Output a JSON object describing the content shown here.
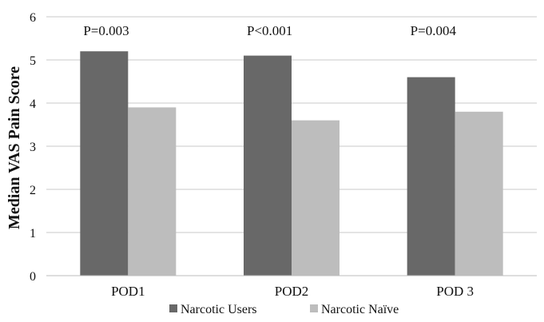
{
  "chart_data": {
    "type": "bar",
    "categories": [
      "POD1",
      "POD2",
      "POD 3"
    ],
    "series": [
      {
        "name": "Narcotic Users",
        "values": [
          5.2,
          5.1,
          4.6
        ],
        "color": "#686868"
      },
      {
        "name": "Narcotic Naïve",
        "values": [
          3.9,
          3.6,
          3.8
        ],
        "color": "#bdbdbd"
      }
    ],
    "annotations": [
      "P=0.003",
      "P<0.001",
      "P=0.004"
    ],
    "ylabel": "Median VAS Pain Score",
    "xlabel": "",
    "ylim": [
      0,
      6
    ],
    "yticks": [
      0,
      1,
      2,
      3,
      4,
      5,
      6
    ],
    "grid": true,
    "legend_position": "bottom"
  }
}
